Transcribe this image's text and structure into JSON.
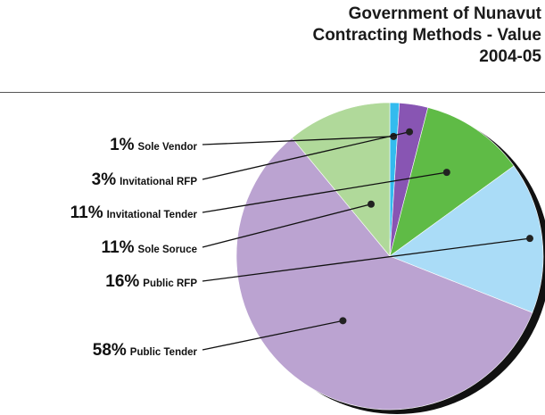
{
  "title": {
    "line1": "Government of Nunavut",
    "line2": "Contracting Methods - Value",
    "line3": "2004-05"
  },
  "chart_data": {
    "type": "pie",
    "title": "Government of Nunavut Contracting Methods - Value 2004-05",
    "unit": "%",
    "slices": [
      {
        "label": "Sole Vendor",
        "value": 1,
        "display": "1%",
        "color": "#33bbee"
      },
      {
        "label": "Invitational RFP",
        "value": 3,
        "display": "3%",
        "color": "#8855b3"
      },
      {
        "label": "Invitational Tender",
        "value": 11,
        "display": "11%",
        "color": "#5fbb46"
      },
      {
        "label": "Public RFP",
        "value": 16,
        "display": "16%",
        "color": "#aadcf7"
      },
      {
        "label": "Public Tender",
        "value": 58,
        "display": "58%",
        "color": "#bba3d1"
      },
      {
        "label": "Sole Soruce",
        "value": 11,
        "display": "11%",
        "color": "#b0d99a"
      }
    ],
    "legend_order": [
      "Sole Vendor",
      "Invitational RFP",
      "Invitational Tender",
      "Sole Soruce",
      "Public RFP",
      "Public Tender"
    ]
  }
}
